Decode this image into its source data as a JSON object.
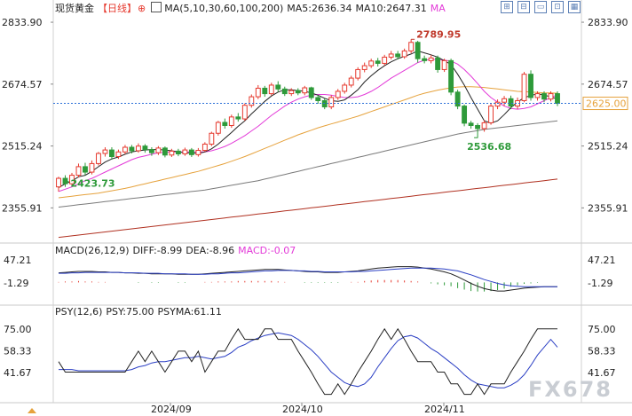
{
  "header": {
    "instrument": "现货黄金",
    "period": "【日线】",
    "add_symbol": "⊕",
    "ma_label": "MA(5,10,30,60,100,200)",
    "ma5": "MA5:2636.34",
    "ma10": "MA10:2647.31",
    "ma_extra": "MA",
    "tools": [
      "⊞",
      "⊟",
      "▭",
      "⊡",
      "▦"
    ]
  },
  "panes": {
    "macd": {
      "label": "MACD(26,12,9)",
      "diff": "DIFF:-8.99",
      "dea": "DEA:-8.96",
      "macd": "MACD:-0.07"
    },
    "psy": {
      "label": "PSY(12,6)",
      "psy": "PSY:75.00",
      "psyma": "PSYMA:61.11"
    }
  },
  "watermark": "FX678",
  "colors": {
    "up": "#e63a2f",
    "down": "#2e9a3a",
    "ma5": "#222222",
    "ma10": "#e33ad8",
    "ma30": "#e6a23c",
    "ma60": "#7a7a7a",
    "ma200": "#b03020",
    "diff": "#222222",
    "dea": "#2b3fc4",
    "last_price": "#2b6fd8"
  },
  "chart_data": [
    {
      "type": "candlestick",
      "title": "现货黄金【日线】",
      "x_ticks": [
        "2024/09",
        "2024/10",
        "2024/11"
      ],
      "y_ticks": [
        2833.9,
        2674.57,
        2515.24,
        2355.91
      ],
      "ylim": [
        2270,
        2850
      ],
      "last_price": 2625.0,
      "annotations": [
        {
          "label": "2789.95",
          "value": 2789.95,
          "kind": "high"
        },
        {
          "label": "2536.68",
          "value": 2536.68,
          "kind": "low"
        },
        {
          "label": "2423.73",
          "value": 2423.73,
          "kind": "low"
        }
      ],
      "candles": [
        [
          2410,
          2432,
          2398,
          2436
        ],
        [
          2432,
          2418,
          2410,
          2440
        ],
        [
          2418,
          2440,
          2412,
          2446
        ],
        [
          2440,
          2462,
          2434,
          2470
        ],
        [
          2462,
          2448,
          2440,
          2472
        ],
        [
          2448,
          2470,
          2442,
          2478
        ],
        [
          2470,
          2496,
          2465,
          2500
        ],
        [
          2496,
          2505,
          2488,
          2512
        ],
        [
          2505,
          2488,
          2480,
          2512
        ],
        [
          2488,
          2500,
          2482,
          2506
        ],
        [
          2500,
          2512,
          2494,
          2518
        ],
        [
          2512,
          2503,
          2496,
          2518
        ],
        [
          2503,
          2515,
          2498,
          2522
        ],
        [
          2515,
          2506,
          2498,
          2520
        ],
        [
          2506,
          2498,
          2490,
          2512
        ],
        [
          2498,
          2510,
          2492,
          2515
        ],
        [
          2510,
          2492,
          2486,
          2514
        ],
        [
          2492,
          2502,
          2487,
          2508
        ],
        [
          2502,
          2495,
          2489,
          2508
        ],
        [
          2495,
          2505,
          2490,
          2511
        ],
        [
          2505,
          2493,
          2487,
          2510
        ],
        [
          2493,
          2504,
          2488,
          2510
        ],
        [
          2504,
          2520,
          2500,
          2525
        ],
        [
          2520,
          2548,
          2515,
          2552
        ],
        [
          2548,
          2576,
          2542,
          2580
        ],
        [
          2576,
          2568,
          2560,
          2586
        ],
        [
          2568,
          2590,
          2562,
          2596
        ],
        [
          2590,
          2585,
          2578,
          2600
        ],
        [
          2585,
          2620,
          2580,
          2625
        ],
        [
          2620,
          2642,
          2614,
          2648
        ],
        [
          2642,
          2664,
          2636,
          2672
        ],
        [
          2664,
          2650,
          2642,
          2670
        ],
        [
          2650,
          2672,
          2645,
          2678
        ],
        [
          2672,
          2662,
          2654,
          2682
        ],
        [
          2662,
          2650,
          2644,
          2668
        ],
        [
          2650,
          2658,
          2644,
          2664
        ],
        [
          2658,
          2652,
          2646,
          2664
        ],
        [
          2652,
          2665,
          2646,
          2670
        ],
        [
          2665,
          2640,
          2634,
          2668
        ],
        [
          2640,
          2632,
          2624,
          2646
        ],
        [
          2632,
          2616,
          2610,
          2638
        ],
        [
          2616,
          2640,
          2610,
          2646
        ],
        [
          2640,
          2656,
          2634,
          2662
        ],
        [
          2656,
          2672,
          2650,
          2678
        ],
        [
          2672,
          2690,
          2666,
          2696
        ],
        [
          2690,
          2712,
          2684,
          2718
        ],
        [
          2712,
          2722,
          2705,
          2730
        ],
        [
          2722,
          2734,
          2716,
          2740
        ],
        [
          2734,
          2728,
          2720,
          2742
        ],
        [
          2728,
          2744,
          2722,
          2750
        ],
        [
          2744,
          2752,
          2738,
          2760
        ],
        [
          2752,
          2745,
          2738,
          2760
        ],
        [
          2745,
          2760,
          2740,
          2766
        ],
        [
          2760,
          2782,
          2754,
          2790
        ],
        [
          2782,
          2740,
          2730,
          2786
        ],
        [
          2740,
          2735,
          2728,
          2748
        ],
        [
          2735,
          2742,
          2728,
          2750
        ],
        [
          2742,
          2712,
          2704,
          2748
        ],
        [
          2712,
          2735,
          2706,
          2740
        ],
        [
          2735,
          2654,
          2646,
          2740
        ],
        [
          2654,
          2618,
          2610,
          2660
        ],
        [
          2618,
          2574,
          2566,
          2622
        ],
        [
          2574,
          2568,
          2560,
          2580
        ],
        [
          2568,
          2560,
          2536,
          2574
        ],
        [
          2560,
          2575,
          2552,
          2582
        ],
        [
          2575,
          2618,
          2570,
          2624
        ],
        [
          2618,
          2628,
          2610,
          2635
        ],
        [
          2628,
          2637,
          2618,
          2644
        ],
        [
          2637,
          2618,
          2610,
          2645
        ],
        [
          2618,
          2632,
          2610,
          2640
        ],
        [
          2632,
          2700,
          2628,
          2706
        ],
        [
          2700,
          2640,
          2632,
          2710
        ],
        [
          2640,
          2650,
          2632,
          2656
        ],
        [
          2650,
          2636,
          2628,
          2656
        ],
        [
          2636,
          2650,
          2630,
          2656
        ],
        [
          2650,
          2625,
          2618,
          2656
        ]
      ],
      "ma5": [
        2408,
        2418,
        2425,
        2436,
        2440,
        2450,
        2462,
        2474,
        2482,
        2487,
        2494,
        2500,
        2503,
        2505,
        2506,
        2506,
        2505,
        2503,
        2500,
        2498,
        2498,
        2496,
        2500,
        2508,
        2520,
        2535,
        2550,
        2566,
        2580,
        2598,
        2614,
        2630,
        2644,
        2654,
        2660,
        2660,
        2658,
        2656,
        2652,
        2646,
        2638,
        2632,
        2630,
        2634,
        2646,
        2660,
        2680,
        2696,
        2710,
        2722,
        2732,
        2740,
        2746,
        2752,
        2760,
        2755,
        2750,
        2744,
        2735,
        2725,
        2700,
        2672,
        2640,
        2610,
        2580,
        2574,
        2580,
        2596,
        2614,
        2628,
        2640,
        2645,
        2650,
        2646,
        2642,
        2636
      ],
      "ma10": [
        2398,
        2404,
        2410,
        2418,
        2426,
        2432,
        2440,
        2448,
        2456,
        2464,
        2472,
        2480,
        2486,
        2490,
        2494,
        2498,
        2499,
        2500,
        2500,
        2500,
        2500,
        2500,
        2500,
        2503,
        2508,
        2514,
        2522,
        2532,
        2542,
        2554,
        2566,
        2580,
        2594,
        2606,
        2618,
        2628,
        2636,
        2642,
        2646,
        2648,
        2648,
        2646,
        2643,
        2640,
        2640,
        2642,
        2648,
        2656,
        2666,
        2678,
        2690,
        2700,
        2710,
        2720,
        2730,
        2736,
        2738,
        2738,
        2736,
        2734,
        2726,
        2712,
        2695,
        2676,
        2656,
        2640,
        2628,
        2618,
        2612,
        2610,
        2612,
        2616,
        2624,
        2632,
        2640,
        2647
      ],
      "ma30": [
        2382,
        2384,
        2386,
        2388,
        2390,
        2392,
        2394,
        2397,
        2400,
        2403,
        2406,
        2410,
        2414,
        2418,
        2422,
        2426,
        2430,
        2434,
        2438,
        2442,
        2446,
        2450,
        2455,
        2460,
        2465,
        2470,
        2476,
        2482,
        2488,
        2495,
        2502,
        2509,
        2516,
        2523,
        2530,
        2537,
        2544,
        2550,
        2556,
        2562,
        2567,
        2572,
        2577,
        2582,
        2587,
        2592,
        2598,
        2604,
        2610,
        2616,
        2622,
        2628,
        2634,
        2640,
        2646,
        2651,
        2655,
        2659,
        2662,
        2665,
        2667,
        2668,
        2668,
        2667,
        2666,
        2664,
        2662,
        2660,
        2658,
        2656,
        2655,
        2654,
        2653,
        2652,
        2652,
        2651
      ],
      "ma60": [
        2358,
        2360,
        2362,
        2364,
        2366,
        2368,
        2370,
        2372,
        2374,
        2376,
        2378,
        2380,
        2382,
        2384,
        2386,
        2388,
        2390,
        2392,
        2394,
        2396,
        2398,
        2400,
        2402,
        2405,
        2408,
        2411,
        2414,
        2417,
        2420,
        2423,
        2426,
        2430,
        2434,
        2438,
        2442,
        2446,
        2450,
        2454,
        2458,
        2462,
        2466,
        2470,
        2474,
        2478,
        2482,
        2486,
        2490,
        2494,
        2498,
        2502,
        2506,
        2510,
        2514,
        2518,
        2522,
        2526,
        2530,
        2534,
        2538,
        2542,
        2546,
        2549,
        2552,
        2555,
        2558,
        2560,
        2562,
        2564,
        2566,
        2568,
        2570,
        2572,
        2574,
        2576,
        2578,
        2580
      ],
      "ma200": [
        2280,
        2282,
        2284,
        2286,
        2288,
        2290,
        2292,
        2294,
        2296,
        2298,
        2300,
        2302,
        2304,
        2306,
        2308,
        2310,
        2312,
        2314,
        2316,
        2318,
        2320,
        2322,
        2324,
        2326,
        2328,
        2330,
        2332,
        2334,
        2336,
        2338,
        2340,
        2342,
        2344,
        2346,
        2348,
        2350,
        2352,
        2354,
        2356,
        2358,
        2360,
        2362,
        2364,
        2366,
        2368,
        2370,
        2372,
        2374,
        2376,
        2378,
        2380,
        2382,
        2384,
        2386,
        2388,
        2390,
        2392,
        2394,
        2396,
        2398,
        2400,
        2402,
        2404,
        2406,
        2408,
        2410,
        2412,
        2414,
        2416,
        2418,
        2420,
        2422,
        2424,
        2426,
        2428,
        2430
      ]
    },
    {
      "type": "line",
      "title": "MACD(26,12,9)",
      "y_ticks": [
        47.21,
        -1.29
      ],
      "ylim": [
        -40,
        60
      ],
      "diff": [
        20,
        21,
        22,
        23,
        23,
        23,
        22,
        22,
        21,
        21,
        20,
        20,
        19,
        19,
        18,
        18,
        18,
        18,
        17,
        17,
        17,
        17,
        18,
        19,
        20,
        21,
        22,
        23,
        24,
        25,
        26,
        27,
        27,
        27,
        26,
        25,
        24,
        23,
        22,
        22,
        21,
        21,
        21,
        22,
        23,
        24,
        26,
        28,
        30,
        31,
        32,
        33,
        33,
        33,
        32,
        30,
        28,
        25,
        22,
        18,
        12,
        5,
        -2,
        -8,
        -13,
        -16,
        -18,
        -18,
        -16,
        -14,
        -12,
        -11,
        -10,
        -9,
        -9,
        -9
      ],
      "dea": [
        19,
        19,
        20,
        20,
        21,
        21,
        21,
        21,
        21,
        21,
        20,
        20,
        20,
        19,
        19,
        19,
        18,
        18,
        18,
        18,
        17,
        17,
        17,
        18,
        18,
        19,
        20,
        20,
        21,
        22,
        23,
        24,
        24,
        25,
        25,
        25,
        24,
        24,
        23,
        23,
        22,
        22,
        22,
        22,
        22,
        23,
        23,
        24,
        25,
        26,
        27,
        28,
        29,
        30,
        30,
        30,
        30,
        29,
        28,
        26,
        24,
        20,
        16,
        11,
        6,
        2,
        -2,
        -5,
        -7,
        -8,
        -9,
        -9,
        -9,
        -9,
        -9,
        -9
      ],
      "macd": [
        1,
        2,
        2,
        3,
        2,
        2,
        1,
        1,
        0,
        0,
        0,
        0,
        -1,
        0,
        -1,
        -1,
        0,
        0,
        -1,
        -1,
        0,
        0,
        1,
        1,
        2,
        2,
        2,
        3,
        3,
        3,
        3,
        3,
        3,
        2,
        1,
        0,
        0,
        -1,
        -1,
        -1,
        -1,
        -1,
        -1,
        0,
        1,
        1,
        3,
        4,
        5,
        5,
        5,
        5,
        4,
        3,
        2,
        0,
        -2,
        -4,
        -6,
        -8,
        -12,
        -15,
        -18,
        -19,
        -19,
        -18,
        -16,
        -13,
        -9,
        -6,
        -3,
        -2,
        -1,
        0,
        0,
        0
      ]
    },
    {
      "type": "line",
      "title": "PSY(12,6)",
      "y_ticks": [
        75.0,
        58.33,
        41.67
      ],
      "ylim": [
        20,
        85
      ],
      "psy": [
        50,
        42,
        42,
        42,
        42,
        42,
        42,
        42,
        42,
        42,
        42,
        50,
        58,
        50,
        58,
        50,
        42,
        50,
        58,
        58,
        50,
        58,
        42,
        50,
        58,
        58,
        67,
        75,
        67,
        67,
        67,
        75,
        75,
        67,
        67,
        67,
        58,
        50,
        42,
        33,
        25,
        25,
        33,
        25,
        33,
        42,
        50,
        58,
        67,
        75,
        67,
        75,
        67,
        58,
        50,
        50,
        50,
        42,
        42,
        33,
        33,
        25,
        25,
        33,
        25,
        33,
        33,
        33,
        42,
        50,
        58,
        67,
        75,
        75,
        75,
        75
      ],
      "psyma": [
        44,
        44,
        44,
        43,
        43,
        43,
        43,
        43,
        43,
        43,
        43,
        44,
        46,
        47,
        49,
        50,
        50,
        51,
        52,
        53,
        53,
        54,
        53,
        52,
        53,
        54,
        57,
        61,
        63,
        66,
        68,
        70,
        71,
        72,
        71,
        70,
        67,
        63,
        59,
        54,
        48,
        42,
        38,
        34,
        32,
        31,
        33,
        38,
        46,
        53,
        60,
        66,
        69,
        70,
        68,
        64,
        60,
        57,
        53,
        49,
        45,
        40,
        36,
        33,
        32,
        31,
        30,
        30,
        32,
        35,
        40,
        47,
        55,
        61,
        67,
        61
      ]
    }
  ],
  "axis": {
    "main_left": [
      "2833.90",
      "2674.57",
      "2515.24",
      "2355.91"
    ],
    "main_right": [
      "2833.90",
      "2674.57",
      "2515.24",
      "2355.91"
    ],
    "price_tag": "2625.00",
    "macd_left": [
      "47.21",
      "-1.29"
    ],
    "macd_right": [
      "47.21",
      "-1.29"
    ],
    "psy_left": [
      "75.00",
      "58.33",
      "41.67"
    ],
    "psy_right": [
      "75.00",
      "58.33",
      "41.67"
    ],
    "x_labels": [
      "2024/09",
      "2024/10",
      "2024/11"
    ]
  }
}
